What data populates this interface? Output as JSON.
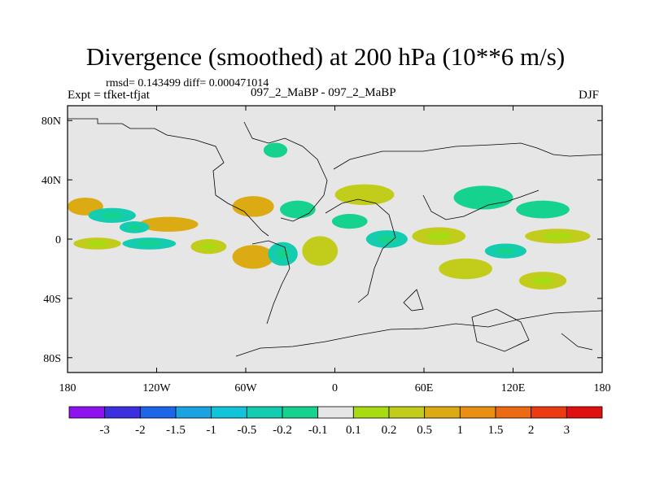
{
  "header": {
    "title": "Divergence (smoothed) at 200 hPa (10**6 m/s)",
    "stats": "rmsd= 0.143499 diff= 0.000471014",
    "left_label": "Expt = tfket-tfjat",
    "center_label": "097_2_MaBP - 097_2_MaBP",
    "right_label": "DJF"
  },
  "chart_data": {
    "type": "heatmap",
    "title": "Divergence (smoothed) at 200 hPa (10**6 m/s)",
    "x_ticks": [
      "180",
      "120W",
      "60W",
      "0",
      "60E",
      "120E",
      "180"
    ],
    "x_values": [
      -180,
      -120,
      -60,
      0,
      60,
      120,
      180
    ],
    "y_ticks": [
      "80N",
      "40N",
      "0",
      "40S",
      "80S"
    ],
    "y_values": [
      80,
      40,
      0,
      -40,
      -80
    ],
    "xlim": [
      -180,
      180
    ],
    "ylim": [
      -90,
      90
    ],
    "colorbar": {
      "labels": [
        "-3",
        "-2",
        "-1.5",
        "-1",
        "-0.5",
        "-0.2",
        "-0.1",
        "0.1",
        "0.2",
        "0.5",
        "1",
        "1.5",
        "2",
        "3"
      ],
      "colors": [
        "#8e12f0",
        "#3b2fe0",
        "#1e66e8",
        "#1aa3e0",
        "#12c4d9",
        "#14ccb0",
        "#16d28f",
        "#e6e6e6",
        "#a8dc12",
        "#c2cc1a",
        "#dcaa12",
        "#e88f14",
        "#ec6a14",
        "#ec3a12",
        "#e01010"
      ]
    },
    "regions": [
      {
        "lon": -168,
        "lat": 22,
        "rx": 12,
        "ry": 6,
        "level": 0.5
      },
      {
        "lon": -150,
        "lat": 16,
        "rx": 16,
        "ry": 5,
        "level": -0.3
      },
      {
        "lon": -112,
        "lat": 10,
        "rx": 20,
        "ry": 5,
        "level": 0.8
      },
      {
        "lon": -135,
        "lat": 8,
        "rx": 10,
        "ry": 4,
        "level": -0.3
      },
      {
        "lon": -55,
        "lat": 22,
        "rx": 14,
        "ry": 7,
        "level": 0.5
      },
      {
        "lon": -25,
        "lat": 20,
        "rx": 12,
        "ry": 6,
        "level": -0.2
      },
      {
        "lon": -160,
        "lat": -3,
        "rx": 16,
        "ry": 4,
        "level": 0.25
      },
      {
        "lon": -125,
        "lat": -3,
        "rx": 18,
        "ry": 4,
        "level": -0.3
      },
      {
        "lon": -85,
        "lat": -5,
        "rx": 12,
        "ry": 5,
        "level": 0.3
      },
      {
        "lon": -55,
        "lat": -12,
        "rx": 14,
        "ry": 8,
        "level": 0.5
      },
      {
        "lon": -35,
        "lat": -10,
        "rx": 10,
        "ry": 8,
        "level": -0.3
      },
      {
        "lon": -10,
        "lat": -8,
        "rx": 12,
        "ry": 10,
        "level": 0.4
      },
      {
        "lon": 20,
        "lat": 30,
        "rx": 20,
        "ry": 7,
        "level": 0.4
      },
      {
        "lon": 10,
        "lat": 12,
        "rx": 12,
        "ry": 5,
        "level": -0.2
      },
      {
        "lon": 35,
        "lat": 0,
        "rx": 14,
        "ry": 6,
        "level": -0.3
      },
      {
        "lon": 70,
        "lat": 2,
        "rx": 18,
        "ry": 6,
        "level": 0.25
      },
      {
        "lon": 100,
        "lat": 28,
        "rx": 20,
        "ry": 8,
        "level": -0.2
      },
      {
        "lon": 140,
        "lat": 20,
        "rx": 18,
        "ry": 6,
        "level": -0.2
      },
      {
        "lon": 150,
        "lat": 2,
        "rx": 22,
        "ry": 5,
        "level": 0.25
      },
      {
        "lon": 88,
        "lat": -20,
        "rx": 18,
        "ry": 7,
        "level": 0.4
      },
      {
        "lon": 115,
        "lat": -8,
        "rx": 14,
        "ry": 5,
        "level": -0.3
      },
      {
        "lon": -40,
        "lat": 60,
        "rx": 8,
        "ry": 5,
        "level": -0.2
      },
      {
        "lon": 140,
        "lat": -28,
        "rx": 16,
        "ry": 6,
        "level": 0.2
      }
    ]
  }
}
